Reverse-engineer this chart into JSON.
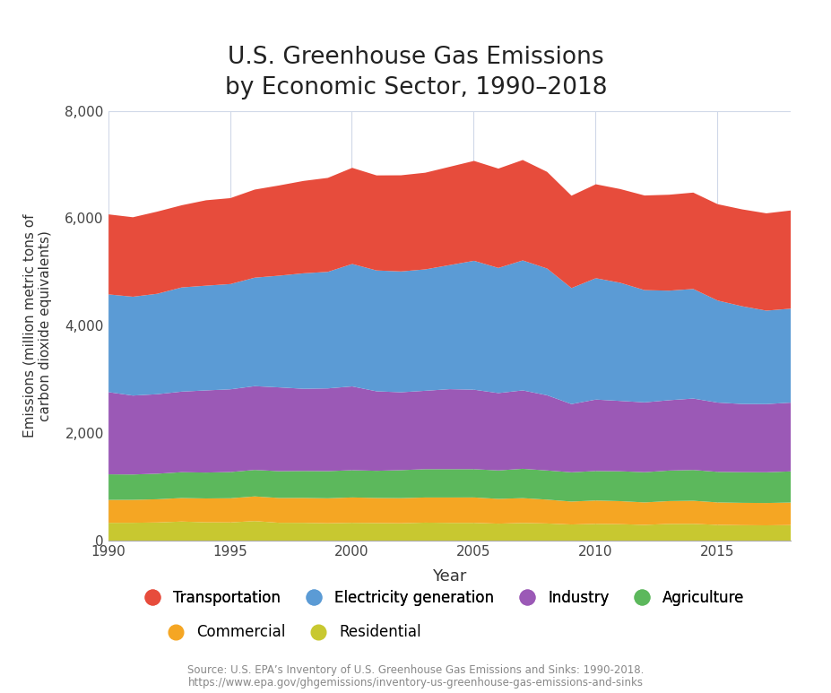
{
  "title": "U.S. Greenhouse Gas Emissions\nby Economic Sector, 1990–2018",
  "xlabel": "Year",
  "ylabel": "Emissions (million metric tons of\ncarbon dioxide equivalents)",
  "source_line1": "Source: U.S. EPA’s Inventory of U.S. Greenhouse Gas Emissions and Sinks: 1990-2018.",
  "source_line2": "https://www.epa.gov/ghgemissions/inventory-us-greenhouse-gas-emissions-and-sinks",
  "years": [
    1990,
    1991,
    1992,
    1993,
    1994,
    1995,
    1996,
    1997,
    1998,
    1999,
    2000,
    2001,
    2002,
    2003,
    2004,
    2005,
    2006,
    2007,
    2008,
    2009,
    2010,
    2011,
    2012,
    2013,
    2014,
    2015,
    2016,
    2017,
    2018
  ],
  "residential": [
    338,
    339,
    345,
    362,
    348,
    346,
    371,
    339,
    338,
    330,
    338,
    334,
    330,
    342,
    337,
    337,
    323,
    335,
    326,
    307,
    319,
    313,
    300,
    318,
    319,
    300,
    294,
    291,
    296
  ],
  "commercial": [
    427,
    427,
    432,
    438,
    444,
    450,
    459,
    462,
    464,
    465,
    473,
    467,
    468,
    468,
    473,
    474,
    461,
    463,
    444,
    427,
    435,
    429,
    418,
    425,
    430,
    418,
    416,
    416,
    420
  ],
  "agriculture": [
    476,
    472,
    476,
    481,
    482,
    488,
    493,
    499,
    502,
    506,
    507,
    506,
    521,
    527,
    527,
    526,
    530,
    546,
    543,
    545,
    549,
    556,
    563,
    568,
    573,
    569,
    571,
    572,
    580
  ],
  "industry": [
    1530,
    1470,
    1480,
    1500,
    1530,
    1540,
    1560,
    1560,
    1530,
    1540,
    1560,
    1480,
    1450,
    1460,
    1490,
    1480,
    1440,
    1460,
    1400,
    1270,
    1330,
    1310,
    1300,
    1310,
    1330,
    1290,
    1270,
    1270,
    1280
  ],
  "electricity": [
    1820,
    1840,
    1870,
    1940,
    1950,
    1960,
    2020,
    2080,
    2150,
    2170,
    2280,
    2250,
    2250,
    2260,
    2310,
    2400,
    2330,
    2420,
    2360,
    2160,
    2260,
    2200,
    2090,
    2040,
    2040,
    1900,
    1820,
    1740,
    1750
  ],
  "transportation": [
    1490,
    1480,
    1530,
    1530,
    1590,
    1600,
    1640,
    1680,
    1720,
    1750,
    1790,
    1770,
    1790,
    1800,
    1830,
    1860,
    1850,
    1870,
    1800,
    1720,
    1749,
    1745,
    1762,
    1786,
    1795,
    1794,
    1804,
    1812,
    1828
  ],
  "colors": {
    "residential": "#c8c830",
    "commercial": "#f5a623",
    "agriculture": "#5cb85c",
    "industry": "#9b59b6",
    "electricity": "#5b9bd5",
    "transportation": "#e74c3c"
  },
  "legend_row1": [
    {
      "label": "Transportation",
      "color": "#e74c3c"
    },
    {
      "label": "Electricity generation",
      "color": "#5b9bd5"
    },
    {
      "label": "Industry",
      "color": "#9b59b6"
    },
    {
      "label": "Agriculture",
      "color": "#5cb85c"
    }
  ],
  "legend_row2": [
    {
      "label": "Commercial",
      "color": "#f5a623"
    },
    {
      "label": "Residential",
      "color": "#c8c830"
    }
  ],
  "ylim": [
    0,
    8000
  ],
  "yticks": [
    0,
    2000,
    4000,
    6000,
    8000
  ],
  "background_color": "#ffffff",
  "grid_color": "#d0d8e8"
}
